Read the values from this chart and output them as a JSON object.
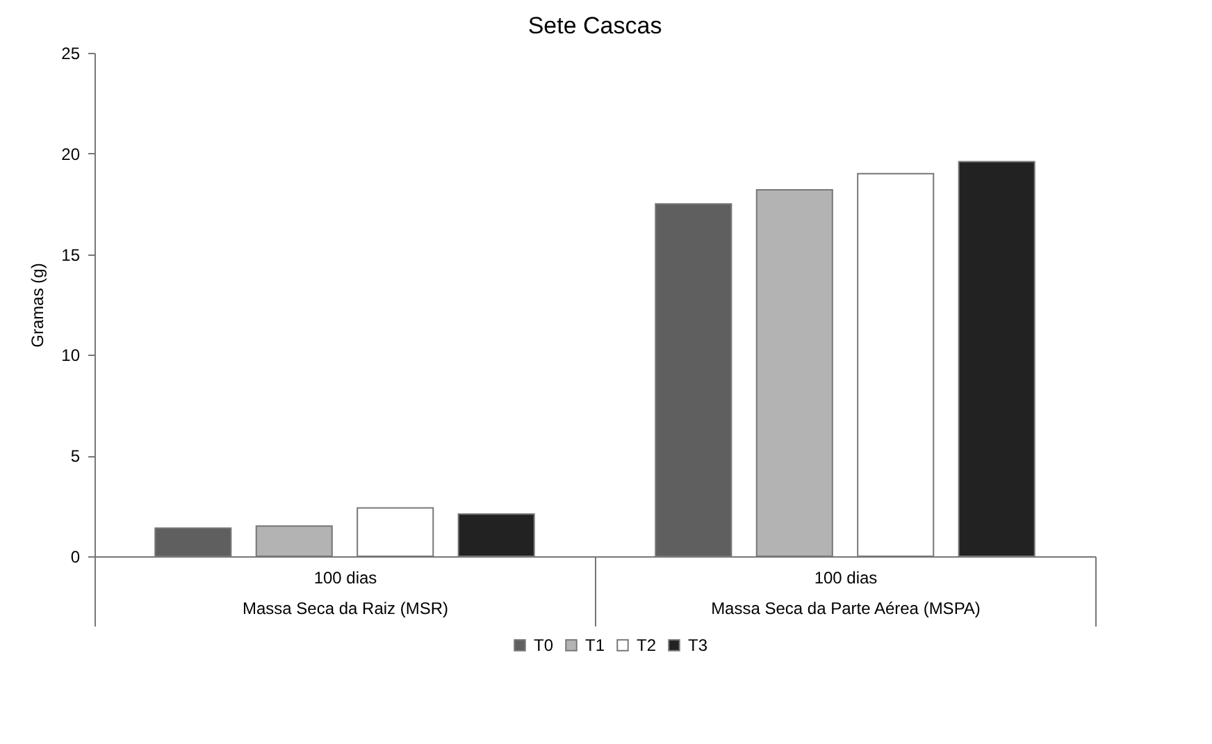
{
  "chart_data": {
    "type": "bar",
    "title": "Sete Cascas",
    "ylabel": "Gramas (g)",
    "categories": [
      "100 dias\nMassa Seca da Raiz (MSR)",
      "100 dias\nMassa Seca da Parte Aérea (MSPA)"
    ],
    "series": [
      {
        "name": "T0",
        "color": "#5f5f5f",
        "values": [
          1.4,
          17.5
        ]
      },
      {
        "name": "T1",
        "color": "#b3b3b3",
        "values": [
          1.5,
          18.2
        ]
      },
      {
        "name": "T2",
        "color": "#ffffff",
        "values": [
          2.4,
          19.0
        ]
      },
      {
        "name": "T3",
        "color": "#222222",
        "values": [
          2.1,
          19.6
        ]
      }
    ],
    "ylim": [
      0,
      25
    ],
    "yticks": [
      0,
      5,
      10,
      15,
      20,
      25
    ],
    "grid": false,
    "legend": "bottom"
  }
}
